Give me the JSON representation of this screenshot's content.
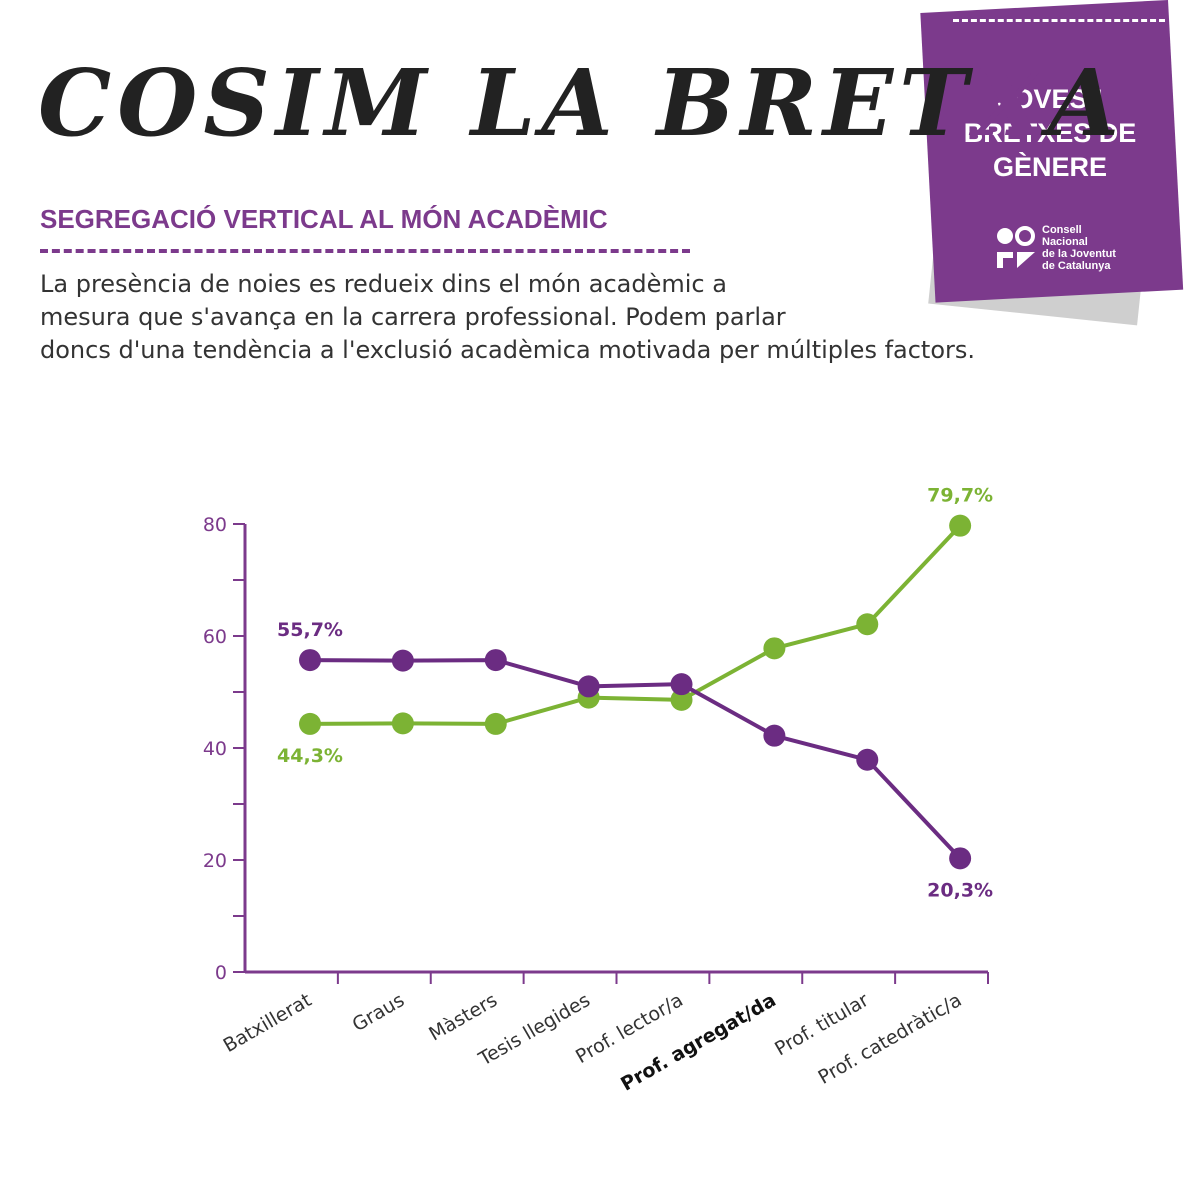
{
  "header": {
    "brand_title_start": "COSIM LA BRET",
    "brand_title_accent": "X",
    "brand_title_end": "A",
    "section_title": "SEGREGACIÓ VERTICAL AL MÓN ACADÈMIC",
    "intro_lines": [
      "La presència de noies es redueix dins el món acadèmic a",
      "mesura que s'avança en la carrera professional. Podem parlar",
      "doncs d'una tendència a l'exclusió acadèmica motivada per múltiples factors."
    ]
  },
  "badge": {
    "lines": [
      "JOVES I",
      "BRETXES DE",
      "GÈNERE"
    ],
    "org_lines": [
      "Consell",
      "Nacional",
      "de la Joventut",
      "de Catalunya"
    ]
  },
  "colors": {
    "purple": "#7c3a8c",
    "series_purple": "#6b2c82",
    "series_green": "#7cb334",
    "text": "#333333"
  },
  "chart_data": {
    "type": "line",
    "categories": [
      "Batxillerat",
      "Graus",
      "Màsters",
      "Tesis llegides",
      "Prof. lector/a",
      "Prof. agregat/da",
      "Prof. titular",
      "Prof. catedràtic/a"
    ],
    "highlight_category": "Prof. agregat/da",
    "series": [
      {
        "color": "#6b2c82",
        "values": [
          55.7,
          55.6,
          55.7,
          51.0,
          51.4,
          42.2,
          37.9,
          20.3
        ]
      },
      {
        "color": "#7cb334",
        "values": [
          44.3,
          44.4,
          44.3,
          49.0,
          48.6,
          57.8,
          62.1,
          79.7
        ]
      }
    ],
    "data_labels": [
      {
        "series": 0,
        "index": 0,
        "text": "55,7%",
        "position": "above"
      },
      {
        "series": 1,
        "index": 0,
        "text": "44,3%",
        "position": "below"
      },
      {
        "series": 1,
        "index": 7,
        "text": "79,7%",
        "position": "above"
      },
      {
        "series": 0,
        "index": 7,
        "text": "20,3%",
        "position": "below"
      }
    ],
    "y_ticks": [
      "0",
      "20",
      "40",
      "60",
      "80"
    ],
    "ylim": [
      0,
      80
    ],
    "grid": false,
    "xlabel": "",
    "ylabel": ""
  }
}
